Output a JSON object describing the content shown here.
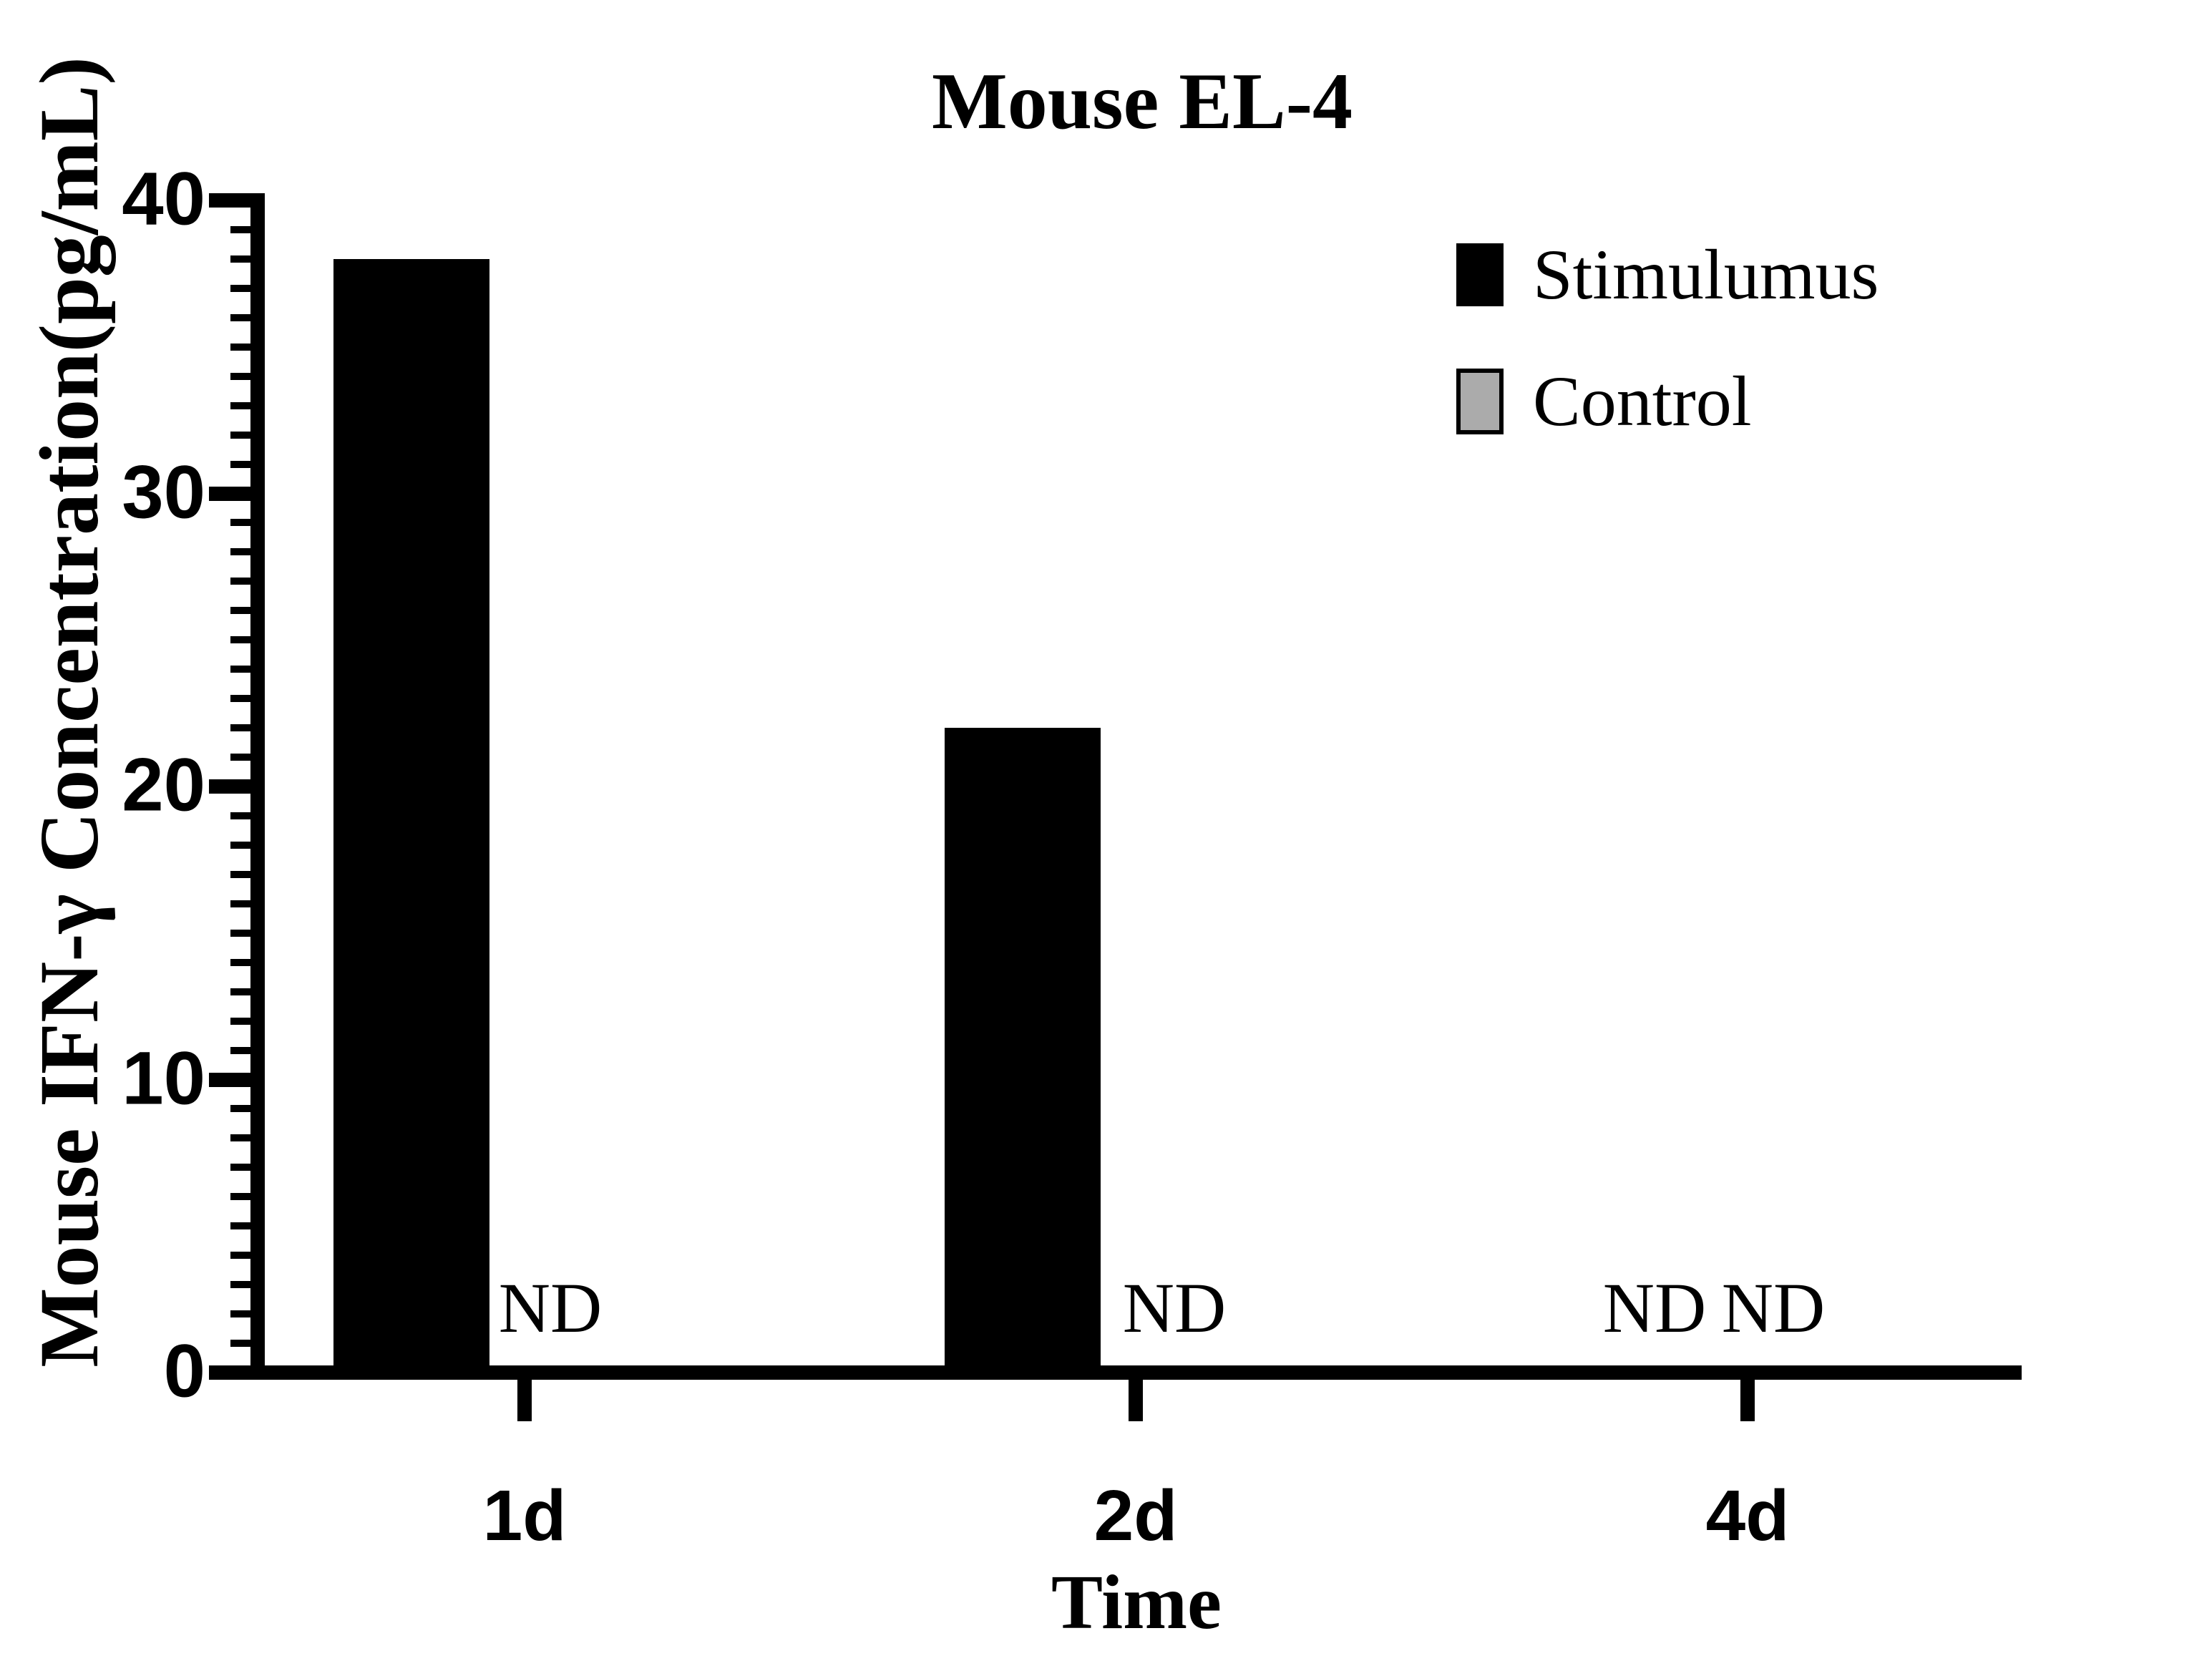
{
  "title": "Mouse EL-4",
  "chart_data": {
    "type": "bar",
    "title": "Mouse EL-4",
    "xlabel": "Time",
    "ylabel": "Mouse IFN-γ Concentration(pg/mL)",
    "categories": [
      "1d",
      "2d",
      "4d"
    ],
    "series": [
      {
        "name": "Stimulumus",
        "color": "#000000",
        "values": [
          38,
          22,
          null
        ],
        "not_detected": [
          false,
          false,
          true
        ]
      },
      {
        "name": "Control",
        "color": "#ABABAB",
        "values": [
          null,
          null,
          null
        ],
        "not_detected": [
          true,
          true,
          true
        ]
      }
    ],
    "annotations": [
      "ND",
      "ND",
      "ND",
      "ND"
    ],
    "annotation_meaning": "ND = not detected (no bar drawn)",
    "ylim": [
      0,
      40
    ],
    "yticks": [
      0,
      10,
      20,
      30,
      40
    ],
    "minor_tick_interval": 1,
    "grid": false,
    "legend_position": "top-right",
    "bar_edge_color": "#000000",
    "background_color": "#FFFFFF"
  }
}
